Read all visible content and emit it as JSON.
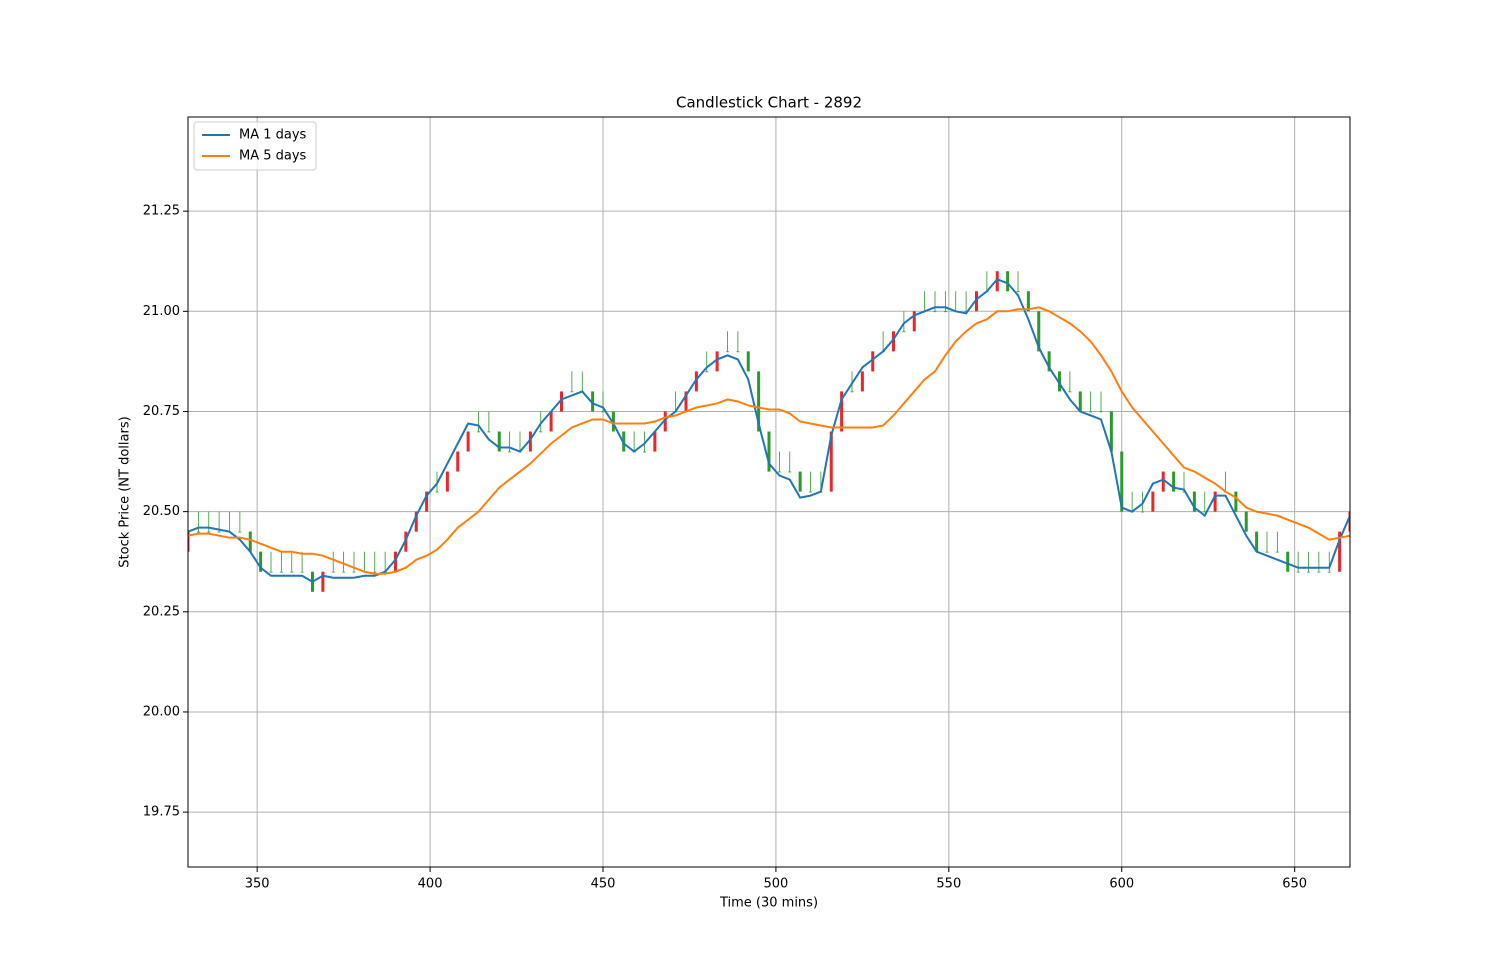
{
  "chart_data": {
    "type": "candlestick",
    "title": "Candlestick Chart - 2892",
    "xlabel": "Time (30 mins)",
    "ylabel": "Stock Price (NT dollars)",
    "xlim": [
      330,
      666
    ],
    "ylim": [
      19.613,
      21.485
    ],
    "xticks": [
      350,
      400,
      450,
      500,
      550,
      600,
      650
    ],
    "yticks": [
      19.75,
      {
        "value": 20,
        "label": "20.00"
      },
      20.25,
      {
        "value": 20.5,
        "label": "20.50"
      },
      20.75,
      {
        "value": 21,
        "label": "21.00"
      },
      21.25
    ],
    "grid": true,
    "legend": "upper left",
    "up_color": "#e8262b",
    "down_color": "#2a9a2a",
    "x": [
      330,
      333,
      336,
      339,
      342,
      345,
      348,
      351,
      354,
      357,
      360,
      363,
      366,
      369,
      372,
      375,
      378,
      381,
      384,
      387,
      390,
      393,
      396,
      399,
      402,
      405,
      408,
      411,
      414,
      417,
      420,
      423,
      426,
      429,
      432,
      435,
      438,
      441,
      444,
      447,
      450,
      453,
      456,
      459,
      462,
      465,
      468,
      471,
      474,
      477,
      480,
      483,
      486,
      489,
      492,
      495,
      498,
      501,
      504,
      507,
      510,
      513,
      516,
      519,
      522,
      525,
      528,
      531,
      534,
      537,
      540,
      543,
      546,
      549,
      552,
      555,
      558,
      561,
      564,
      567,
      570,
      573,
      576,
      579,
      582,
      585,
      588,
      591,
      594,
      597,
      600,
      603,
      606,
      609,
      612,
      615,
      618,
      621,
      624,
      627,
      630,
      633,
      636,
      639,
      642,
      645,
      648,
      651,
      654,
      657,
      660,
      663,
      666
    ],
    "open": [
      20.4,
      20.45,
      20.45,
      20.45,
      20.45,
      20.45,
      20.45,
      20.4,
      20.35,
      20.35,
      20.35,
      20.35,
      20.35,
      20.3,
      20.35,
      20.35,
      20.35,
      20.35,
      20.35,
      20.35,
      20.35,
      20.4,
      20.45,
      20.5,
      20.55,
      20.55,
      20.6,
      20.65,
      20.7,
      20.7,
      20.7,
      20.65,
      20.65,
      20.65,
      20.7,
      20.7,
      20.75,
      20.8,
      20.8,
      20.8,
      20.75,
      20.75,
      20.7,
      20.65,
      20.65,
      20.65,
      20.7,
      20.75,
      20.75,
      20.8,
      20.85,
      20.85,
      20.9,
      20.9,
      20.9,
      20.85,
      20.7,
      20.6,
      20.6,
      20.6,
      20.55,
      20.55,
      20.55,
      20.7,
      20.8,
      20.8,
      20.85,
      20.9,
      20.9,
      20.95,
      20.95,
      21.0,
      21.0,
      21.0,
      21.0,
      21.0,
      21.0,
      21.05,
      21.05,
      21.1,
      21.05,
      21.05,
      21.0,
      20.9,
      20.85,
      20.8,
      20.8,
      20.75,
      20.75,
      20.75,
      20.65,
      20.5,
      20.5,
      20.5,
      20.55,
      20.6,
      20.55,
      20.55,
      20.5,
      20.5,
      20.55,
      20.55,
      20.5,
      20.45,
      20.4,
      20.4,
      20.4,
      20.35,
      20.35,
      20.35,
      20.35,
      20.35,
      20.45
    ],
    "high": [
      20.45,
      20.5,
      20.5,
      20.5,
      20.5,
      20.5,
      20.45,
      20.4,
      20.4,
      20.4,
      20.4,
      20.4,
      20.35,
      20.35,
      20.4,
      20.4,
      20.4,
      20.4,
      20.4,
      20.4,
      20.4,
      20.45,
      20.5,
      20.55,
      20.6,
      20.6,
      20.65,
      20.7,
      20.75,
      20.75,
      20.7,
      20.7,
      20.7,
      20.7,
      20.75,
      20.75,
      20.8,
      20.85,
      20.85,
      20.8,
      20.8,
      20.75,
      20.7,
      20.7,
      20.7,
      20.7,
      20.75,
      20.8,
      20.8,
      20.85,
      20.9,
      20.9,
      20.95,
      20.95,
      20.9,
      20.85,
      20.7,
      20.65,
      20.65,
      20.6,
      20.6,
      20.6,
      20.7,
      20.8,
      20.85,
      20.85,
      20.9,
      20.95,
      20.95,
      21.0,
      21.0,
      21.05,
      21.05,
      21.05,
      21.05,
      21.05,
      21.05,
      21.1,
      21.1,
      21.1,
      21.1,
      21.05,
      21.0,
      20.9,
      20.85,
      20.85,
      20.8,
      20.8,
      20.8,
      20.75,
      20.65,
      20.55,
      20.55,
      20.55,
      20.6,
      20.6,
      20.6,
      20.55,
      20.55,
      20.55,
      20.6,
      20.55,
      20.5,
      20.45,
      20.45,
      20.45,
      20.4,
      20.4,
      20.4,
      20.4,
      20.4,
      20.45,
      20.5
    ],
    "low": [
      20.4,
      20.45,
      20.45,
      20.45,
      20.45,
      20.45,
      20.4,
      20.35,
      20.35,
      20.35,
      20.35,
      20.35,
      20.3,
      20.3,
      20.35,
      20.35,
      20.35,
      20.35,
      20.35,
      20.35,
      20.35,
      20.4,
      20.45,
      20.5,
      20.55,
      20.55,
      20.6,
      20.65,
      20.7,
      20.7,
      20.65,
      20.65,
      20.65,
      20.65,
      20.7,
      20.7,
      20.75,
      20.8,
      20.8,
      20.75,
      20.75,
      20.7,
      20.65,
      20.65,
      20.65,
      20.65,
      20.7,
      20.75,
      20.75,
      20.8,
      20.85,
      20.85,
      20.9,
      20.9,
      20.85,
      20.7,
      20.6,
      20.6,
      20.6,
      20.55,
      20.55,
      20.55,
      20.55,
      20.7,
      20.8,
      20.8,
      20.85,
      20.9,
      20.9,
      20.95,
      20.95,
      21.0,
      21.0,
      21.0,
      21.0,
      21.0,
      21.0,
      21.05,
      21.05,
      21.05,
      21.05,
      21.0,
      20.9,
      20.85,
      20.8,
      20.8,
      20.75,
      20.75,
      20.75,
      20.65,
      20.5,
      20.5,
      20.5,
      20.5,
      20.55,
      20.55,
      20.55,
      20.5,
      20.5,
      20.5,
      20.55,
      20.5,
      20.45,
      20.4,
      20.4,
      20.4,
      20.35,
      20.35,
      20.35,
      20.35,
      20.35,
      20.35,
      20.45
    ],
    "close": [
      20.45,
      20.45,
      20.45,
      20.45,
      20.45,
      20.45,
      20.4,
      20.35,
      20.35,
      20.35,
      20.35,
      20.35,
      20.3,
      20.35,
      20.35,
      20.35,
      20.35,
      20.35,
      20.35,
      20.35,
      20.4,
      20.45,
      20.5,
      20.55,
      20.55,
      20.6,
      20.65,
      20.7,
      20.7,
      20.7,
      20.65,
      20.65,
      20.65,
      20.7,
      20.7,
      20.75,
      20.8,
      20.8,
      20.8,
      20.75,
      20.75,
      20.7,
      20.65,
      20.65,
      20.65,
      20.7,
      20.75,
      20.75,
      20.8,
      20.85,
      20.85,
      20.9,
      20.9,
      20.9,
      20.85,
      20.7,
      20.6,
      20.6,
      20.6,
      20.55,
      20.55,
      20.55,
      20.7,
      20.8,
      20.8,
      20.85,
      20.9,
      20.9,
      20.95,
      20.95,
      21.0,
      21.0,
      21.0,
      21.0,
      21.0,
      21.0,
      21.05,
      21.05,
      21.1,
      21.05,
      21.05,
      21.0,
      20.9,
      20.85,
      20.8,
      20.8,
      20.75,
      20.75,
      20.75,
      20.65,
      20.5,
      20.5,
      20.5,
      20.55,
      20.6,
      20.55,
      20.55,
      20.5,
      20.5,
      20.55,
      20.55,
      20.5,
      20.45,
      20.4,
      20.4,
      20.4,
      20.35,
      20.35,
      20.35,
      20.35,
      20.35,
      20.45,
      20.5
    ],
    "series": [
      {
        "name": "MA 1 days",
        "color": "#1f77b4",
        "values": [
          20.45,
          20.46,
          20.46,
          20.455,
          20.45,
          20.43,
          20.4,
          20.36,
          20.34,
          20.34,
          20.34,
          20.34,
          20.325,
          20.34,
          20.335,
          20.335,
          20.335,
          20.34,
          20.34,
          20.35,
          20.38,
          20.43,
          20.49,
          20.54,
          20.57,
          20.62,
          20.67,
          20.72,
          20.715,
          20.68,
          20.66,
          20.66,
          20.65,
          20.68,
          20.72,
          20.75,
          20.78,
          20.79,
          20.8,
          20.77,
          20.76,
          20.72,
          20.67,
          20.65,
          20.67,
          20.7,
          20.73,
          20.75,
          20.79,
          20.83,
          20.86,
          20.88,
          20.89,
          20.88,
          20.83,
          20.72,
          20.62,
          20.59,
          20.58,
          20.535,
          20.54,
          20.55,
          20.69,
          20.78,
          20.82,
          20.86,
          20.88,
          20.9,
          20.93,
          20.97,
          20.99,
          21.0,
          21.01,
          21.01,
          21.0,
          20.995,
          21.03,
          21.05,
          21.08,
          21.07,
          21.04,
          20.98,
          20.91,
          20.86,
          20.82,
          20.78,
          20.75,
          20.74,
          20.73,
          20.65,
          20.51,
          20.5,
          20.52,
          20.57,
          20.58,
          20.56,
          20.555,
          20.51,
          20.49,
          20.54,
          20.54,
          20.49,
          20.44,
          20.4,
          20.39,
          20.38,
          20.37,
          20.36,
          20.36,
          20.36,
          20.36,
          20.43,
          20.49
        ]
      },
      {
        "name": "MA 5 days",
        "color": "#ff7f0e",
        "values": [
          20.44,
          20.445,
          20.445,
          20.44,
          20.435,
          20.435,
          20.43,
          20.42,
          20.41,
          20.4,
          20.4,
          20.395,
          20.395,
          20.39,
          20.38,
          20.37,
          20.36,
          20.35,
          20.345,
          20.345,
          20.35,
          20.36,
          20.38,
          20.39,
          20.405,
          20.43,
          20.46,
          20.48,
          20.5,
          20.53,
          20.56,
          20.58,
          20.6,
          20.62,
          20.645,
          20.67,
          20.69,
          20.71,
          20.72,
          20.73,
          20.73,
          20.72,
          20.72,
          20.72,
          20.72,
          20.725,
          20.735,
          20.74,
          20.75,
          20.76,
          20.765,
          20.77,
          20.78,
          20.775,
          20.765,
          20.76,
          20.755,
          20.755,
          20.745,
          20.725,
          20.72,
          20.715,
          20.71,
          20.71,
          20.71,
          20.71,
          20.71,
          20.715,
          20.74,
          20.77,
          20.8,
          20.83,
          20.85,
          20.89,
          20.925,
          20.95,
          20.97,
          20.98,
          21.0,
          21.0,
          21.005,
          21.005,
          21.01,
          21.0,
          20.985,
          20.97,
          20.95,
          20.925,
          20.89,
          20.85,
          20.8,
          20.76,
          20.73,
          20.7,
          20.67,
          20.64,
          20.61,
          20.6,
          20.585,
          20.57,
          20.55,
          20.535,
          20.51,
          20.5,
          20.495,
          20.49,
          20.48,
          20.47,
          20.46,
          20.445,
          20.43,
          20.435,
          20.44
        ]
      }
    ]
  }
}
